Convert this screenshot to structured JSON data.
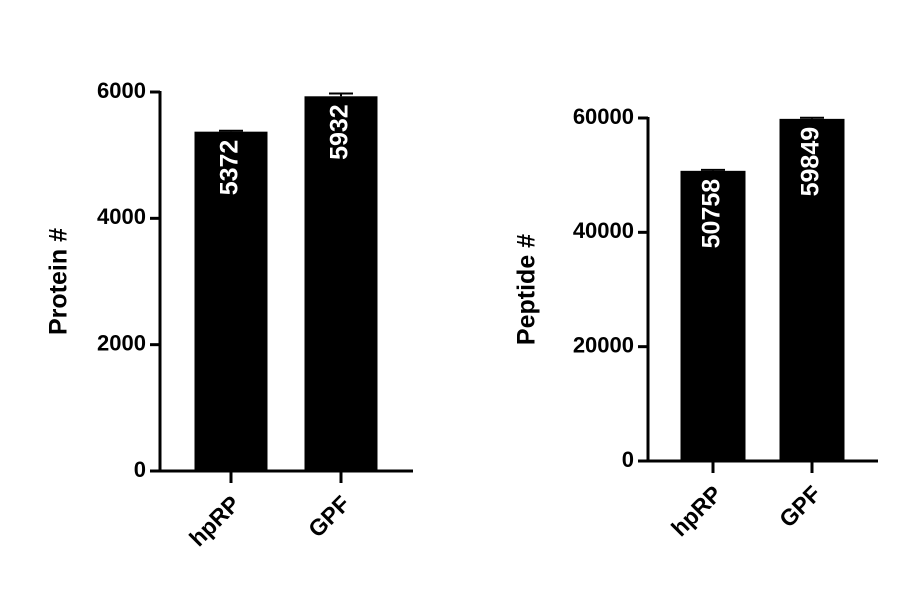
{
  "chart_data": [
    {
      "type": "bar",
      "ylabel": "Protein #",
      "categories": [
        "hpRP",
        "GPF"
      ],
      "values": [
        5372,
        5932
      ],
      "errors": [
        15,
        45
      ],
      "color": "#000000",
      "ylim": [
        0,
        6000
      ],
      "yticks": [
        0,
        2000,
        4000,
        6000
      ]
    },
    {
      "type": "bar",
      "ylabel": "Peptide #",
      "categories": [
        "hpRP",
        "GPF"
      ],
      "values": [
        50758,
        59849
      ],
      "errors": [
        175,
        200
      ],
      "color": "#000000",
      "ylim": [
        0,
        60000
      ],
      "yticks": [
        0,
        20000,
        40000,
        60000
      ]
    }
  ]
}
